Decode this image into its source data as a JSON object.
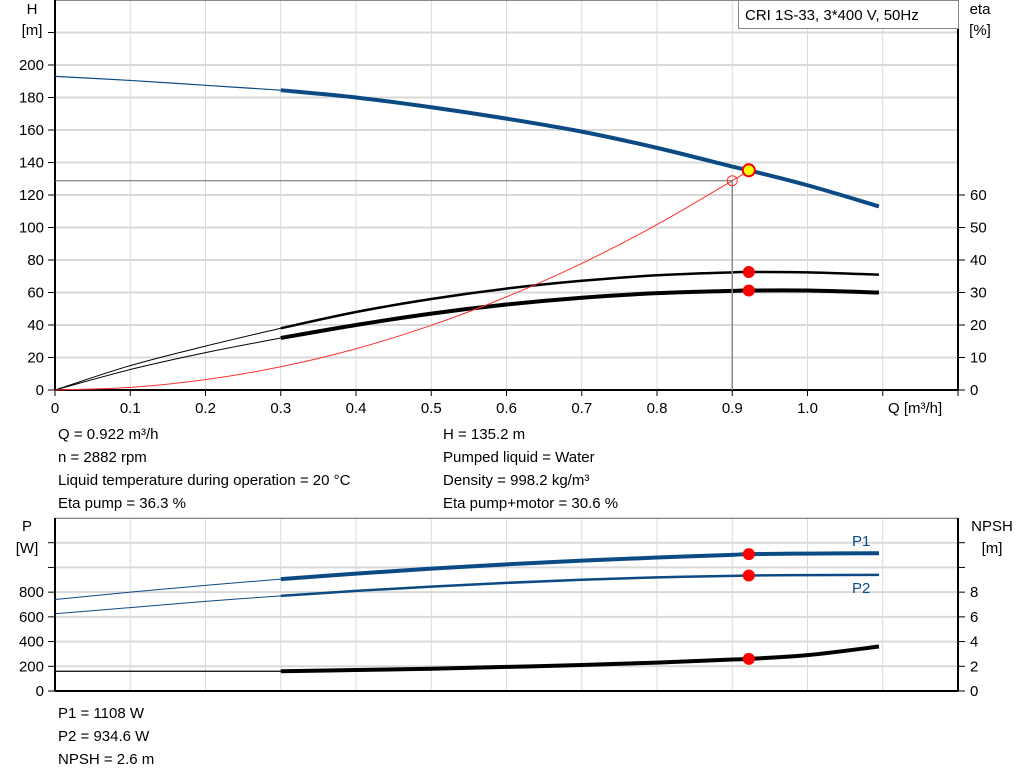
{
  "title_box": "CRI 1S-33, 3*400 V, 50Hz",
  "colors": {
    "head": "#0c4a84",
    "efficiency": "#000000",
    "system": "#ff3030",
    "marker": "#ff0000",
    "duty_point": "#ffff00",
    "grid": "#d9d9d9"
  },
  "chart_data": [
    {
      "type": "line",
      "xlabel": "Q [m³/h]",
      "ylabel": "H\n[m]",
      "ylabel_lines": [
        "H",
        "[m]"
      ],
      "y2label_lines": [
        "eta",
        "[%]"
      ],
      "xlim": [
        0,
        1.2
      ],
      "ylim": [
        0,
        240
      ],
      "y2lim": [
        0,
        120
      ],
      "xticks": [
        "0",
        "0.1",
        "0.2",
        "0.3",
        "0.4",
        "0.5",
        "0.6",
        "0.7",
        "0.8",
        "0.9",
        "1.0"
      ],
      "yticks": [
        "0",
        "20",
        "40",
        "60",
        "80",
        "100",
        "120",
        "140",
        "160",
        "180",
        "200"
      ],
      "y2ticks": [
        "0",
        "10",
        "20",
        "30",
        "40",
        "50",
        "60"
      ],
      "grid": true,
      "series": [
        {
          "key": "H",
          "axis": "left",
          "x": [
            0,
            0.1,
            0.2,
            0.3,
            0.4,
            0.5,
            0.6,
            0.7,
            0.8,
            0.9,
            0.922,
            1.0,
            1.095
          ],
          "y": [
            193,
            190.5,
            187.5,
            184.5,
            180,
            174,
            167,
            159,
            149,
            137.5,
            135.2,
            126,
            113
          ]
        },
        {
          "key": "eta_pump",
          "axis": "right",
          "x": [
            0,
            0.1,
            0.2,
            0.3,
            0.4,
            0.5,
            0.6,
            0.7,
            0.8,
            0.9,
            0.922,
            1.0,
            1.095
          ],
          "y": [
            0,
            7.5,
            13.5,
            19,
            24,
            28,
            31.2,
            33.6,
            35.3,
            36.2,
            36.3,
            36.2,
            35.5
          ]
        },
        {
          "key": "eta_total",
          "axis": "right",
          "x": [
            0,
            0.1,
            0.2,
            0.3,
            0.4,
            0.5,
            0.6,
            0.7,
            0.8,
            0.9,
            0.922,
            1.0,
            1.095
          ],
          "y": [
            0,
            6.3,
            11.5,
            16,
            20,
            23.5,
            26.3,
            28.4,
            29.8,
            30.5,
            30.6,
            30.6,
            30
          ]
        },
        {
          "key": "system",
          "axis": "left",
          "x": [
            0,
            0.1,
            0.2,
            0.3,
            0.4,
            0.5,
            0.6,
            0.7,
            0.8,
            0.9,
            0.922
          ],
          "y": [
            0,
            1.6,
            6.4,
            14.3,
            25.4,
            39.8,
            57.3,
            77.9,
            101.8,
            128.8,
            135.2
          ]
        }
      ],
      "duty_point": {
        "Q": 0.922,
        "H": 135.2,
        "eta_pump": 36.3,
        "eta_total": 30.6
      },
      "reference_point": {
        "Q": 0.9,
        "H": 128.8
      }
    },
    {
      "type": "line",
      "ylabel_lines": [
        "P",
        "[W]"
      ],
      "y2label_lines": [
        "NPSH",
        "[m]"
      ],
      "xlim": [
        0,
        1.2
      ],
      "ylim": [
        0,
        1400
      ],
      "y2lim": [
        0,
        14
      ],
      "yticks": [
        "0",
        "200",
        "400",
        "600",
        "800"
      ],
      "y2ticks": [
        "0",
        "2",
        "4",
        "6",
        "8"
      ],
      "grid": true,
      "series": [
        {
          "key": "P1",
          "name": "P1",
          "axis": "left",
          "x": [
            0,
            0.1,
            0.2,
            0.3,
            0.4,
            0.5,
            0.6,
            0.7,
            0.8,
            0.9,
            0.922,
            1.0,
            1.095
          ],
          "y": [
            740,
            800,
            855,
            905,
            950,
            990,
            1025,
            1055,
            1080,
            1102,
            1108,
            1112,
            1115
          ]
        },
        {
          "key": "P2",
          "name": "P2",
          "axis": "left",
          "x": [
            0,
            0.1,
            0.2,
            0.3,
            0.4,
            0.5,
            0.6,
            0.7,
            0.8,
            0.9,
            0.922,
            1.0,
            1.095
          ],
          "y": [
            625,
            675,
            725,
            770,
            810,
            845,
            875,
            900,
            920,
            932,
            934.6,
            938,
            940
          ]
        },
        {
          "key": "NPSH",
          "axis": "right",
          "x": [
            0,
            0.1,
            0.2,
            0.3,
            0.4,
            0.5,
            0.6,
            0.7,
            0.8,
            0.9,
            0.922,
            1.0,
            1.095
          ],
          "y": [
            1.6,
            1.6,
            1.6,
            1.6,
            1.7,
            1.8,
            1.95,
            2.1,
            2.3,
            2.55,
            2.6,
            2.9,
            3.6
          ]
        }
      ],
      "duty_point": {
        "Q": 0.922,
        "P1": 1108,
        "P2": 934.6,
        "NPSH": 2.6
      }
    }
  ],
  "info_top_left": [
    "Q = 0.922 m³/h",
    "n = 2882 rpm",
    "Liquid temperature during operation = 20 °C",
    "Eta pump = 36.3 %"
  ],
  "info_top_right": [
    "H = 135.2 m",
    "Pumped liquid = Water",
    "Density = 998.2 kg/m³",
    "Eta pump+motor = 30.6 %"
  ],
  "info_bottom": [
    "P1 = 1108 W",
    "P2 = 934.6 W",
    "NPSH = 2.6 m"
  ]
}
